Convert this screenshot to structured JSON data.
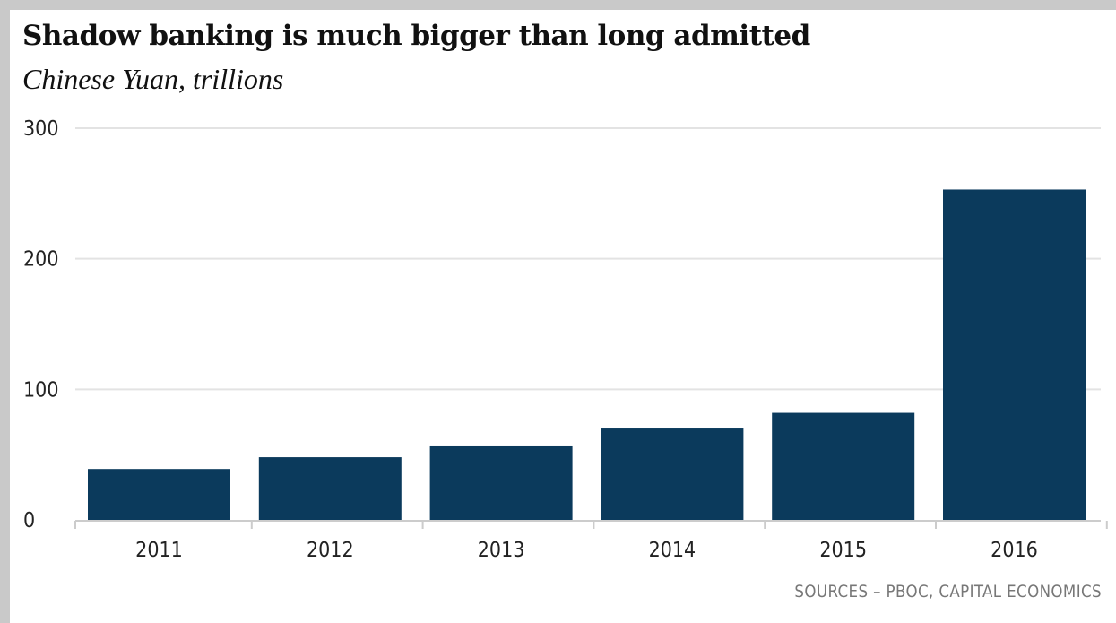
{
  "title": "Shadow banking is much bigger than long admitted",
  "subtitle": "Chinese Yuan, trillions",
  "source": "SOURCES – PBOC, CAPITAL ECONOMICS",
  "colors": {
    "bar": "#0b3a5c",
    "grid": "#e3e3e3",
    "baseline": "#cccccc",
    "frame": "#c9c9c9"
  },
  "chart_data": {
    "type": "bar",
    "title": "Shadow banking is much bigger than long admitted",
    "subtitle": "Chinese Yuan, trillions",
    "categories": [
      "2011",
      "2012",
      "2013",
      "2014",
      "2015",
      "2016"
    ],
    "values": [
      39,
      48,
      57,
      70,
      82,
      253
    ],
    "ylim": [
      0,
      300
    ],
    "yticks": [
      "0",
      "100",
      "200",
      "300"
    ],
    "grid": true,
    "legend": "none",
    "xlabel": "",
    "ylabel": ""
  }
}
